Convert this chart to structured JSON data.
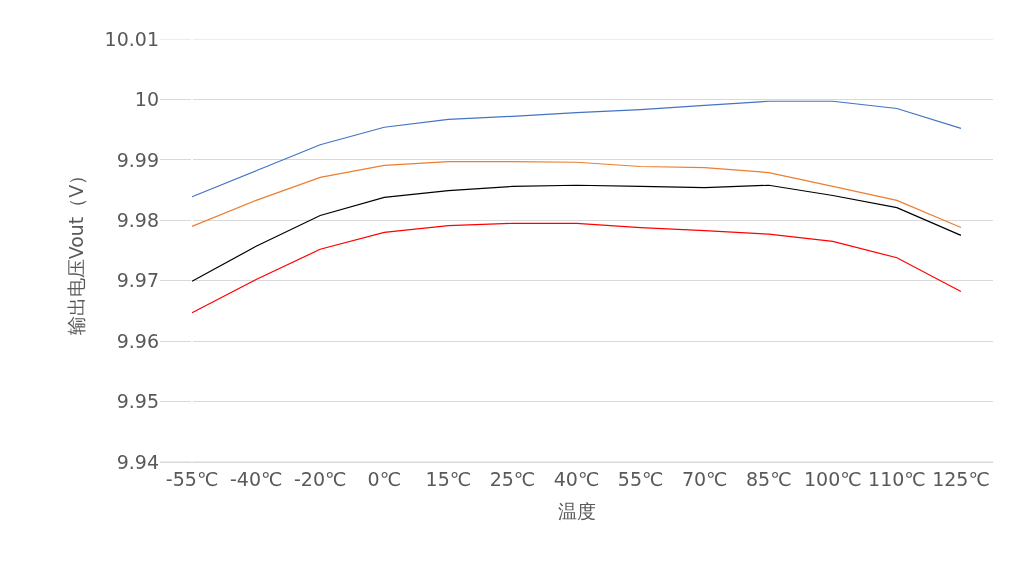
{
  "chart_data": {
    "type": "line",
    "xlabel": "温度",
    "ylabel": "输出电压Vout（V）",
    "categories": [
      "-55℃",
      "-40℃",
      "-20℃",
      "0℃",
      "15℃",
      "25℃",
      "40℃",
      "55℃",
      "70℃",
      "85℃",
      "100℃",
      "110℃",
      "125℃"
    ],
    "series": [
      {
        "color": "#4472c4",
        "values": [
          9.9839,
          9.9882,
          9.9925,
          9.9954,
          9.9967,
          9.9972,
          9.9978,
          9.9983,
          9.999,
          9.9997,
          9.9997,
          9.9985,
          9.9952
        ]
      },
      {
        "color": "#ed7d31",
        "values": [
          9.979,
          9.9833,
          9.9871,
          9.9891,
          9.9897,
          9.9897,
          9.9896,
          9.9889,
          9.9887,
          9.9879,
          9.9856,
          9.9833,
          9.9788
        ]
      },
      {
        "color": "#000000",
        "values": [
          9.9699,
          9.9757,
          9.9808,
          9.9838,
          9.9849,
          9.9856,
          9.9858,
          9.9856,
          9.9854,
          9.9858,
          9.9841,
          9.9821,
          9.9775
        ]
      },
      {
        "color": "#ff0000",
        "values": [
          9.9647,
          9.9702,
          9.9752,
          9.978,
          9.9791,
          9.9795,
          9.9795,
          9.9788,
          9.9783,
          9.9777,
          9.9765,
          9.9738,
          9.9682
        ]
      }
    ],
    "ylim": [
      9.94,
      10.01
    ],
    "yticks": [
      {
        "value": 9.94,
        "label": "9.94"
      },
      {
        "value": 9.95,
        "label": "9.95"
      },
      {
        "value": 9.96,
        "label": "9.96"
      },
      {
        "value": 9.97,
        "label": "9.97"
      },
      {
        "value": 9.98,
        "label": "9.98"
      },
      {
        "value": 9.99,
        "label": "9.99"
      },
      {
        "value": 10,
        "label": "10"
      },
      {
        "value": 10.01,
        "label": "10.01"
      }
    ],
    "grid": "y",
    "marker": "none",
    "line_style": "solid"
  }
}
